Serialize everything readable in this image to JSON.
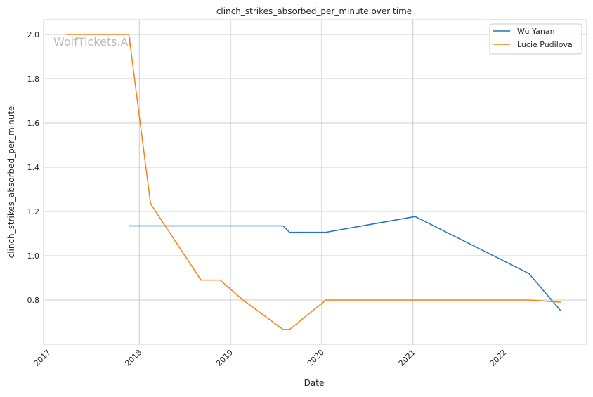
{
  "chart_data": {
    "type": "line",
    "title": "clinch_strikes_absorbed_per_minute over time",
    "xlabel": "Date",
    "ylabel": "clinch_strikes_absorbed_per_minute",
    "watermark": "WolfTickets.AI",
    "xlim": [
      "2016-12-20",
      "2022-11-25"
    ],
    "ylim": [
      0.61,
      2.065
    ],
    "x_ticks": [
      "2017",
      "2018",
      "2019",
      "2020",
      "2021",
      "2022"
    ],
    "y_ticks": [
      0.8,
      1.0,
      1.2,
      1.4,
      1.6,
      1.8,
      2.0
    ],
    "grid": true,
    "legend_position": "top-right",
    "series": [
      {
        "name": "Wu Yanan",
        "color": "#1f77b4",
        "x": [
          "2017-11-20",
          "2019-07-30",
          "2019-08-25",
          "2020-01-18",
          "2021-01-10",
          "2022-04-10",
          "2022-08-15"
        ],
        "y": [
          1.135,
          1.135,
          1.106,
          1.106,
          1.177,
          0.92,
          0.752
        ]
      },
      {
        "name": "Lucie Pudilova",
        "color": "#ff7f0e",
        "x": [
          "2017-03-15",
          "2017-11-20",
          "2018-02-15",
          "2018-09-05",
          "2018-11-20",
          "2019-02-20",
          "2019-07-30",
          "2019-08-25",
          "2020-01-18",
          "2022-04-10",
          "2022-08-15"
        ],
        "y": [
          2.0,
          2.0,
          1.235,
          0.89,
          0.89,
          0.8,
          0.667,
          0.667,
          0.8,
          0.8,
          0.79
        ]
      }
    ]
  }
}
